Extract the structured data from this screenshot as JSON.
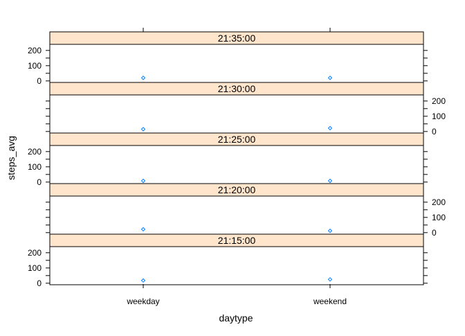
{
  "chart_data": {
    "type": "scatter",
    "xlabel": "daytype",
    "ylabel": "steps_avg",
    "categories": [
      "weekday",
      "weekend"
    ],
    "ylim": [
      -10,
      240
    ],
    "yticks": [
      0,
      100,
      200
    ],
    "panels": [
      {
        "label": "21:35:00",
        "values": [
          20,
          20
        ]
      },
      {
        "label": "21:30:00",
        "values": [
          15,
          22
        ]
      },
      {
        "label": "21:25:00",
        "values": [
          8,
          8
        ]
      },
      {
        "label": "21:20:00",
        "values": [
          22,
          12
        ]
      },
      {
        "label": "21:15:00",
        "values": [
          18,
          25
        ]
      }
    ],
    "colors": {
      "strip": "#ffe5cc",
      "point": "#0080ff",
      "border": "#000000"
    }
  }
}
